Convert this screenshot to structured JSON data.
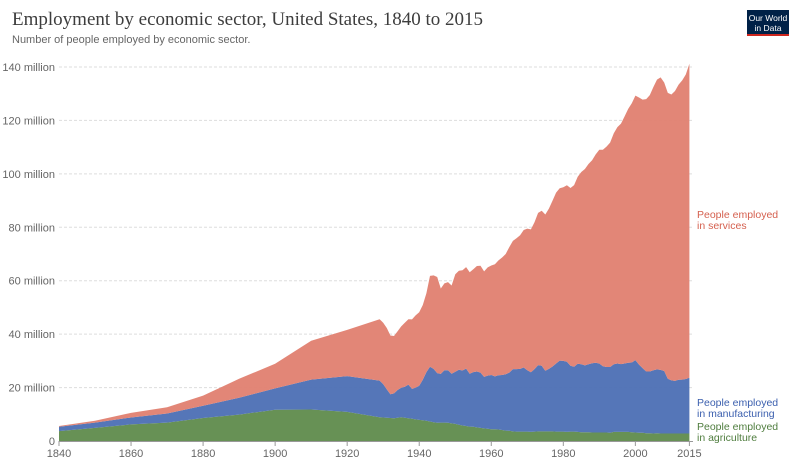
{
  "header": {
    "title": "Employment by economic sector, United States, 1840 to 2015",
    "subtitle": "Number of people employed by economic sector.",
    "logo_line1": "Our World",
    "logo_line2": "in Data"
  },
  "chart_data": {
    "type": "area",
    "stacked": true,
    "title": "Employment by economic sector, United States, 1840 to 2015",
    "subtitle": "Number of people employed by economic sector.",
    "xlim": [
      1840,
      2016
    ],
    "ylim": [
      0,
      140000000
    ],
    "x_ticks": [
      "1840",
      "1860",
      "1880",
      "1900",
      "1920",
      "1940",
      "1960",
      "1980",
      "2000",
      "2015"
    ],
    "y_ticks": [
      "0",
      "20 million",
      "40 million",
      "60 million",
      "80 million",
      "100 million",
      "120 million",
      "140 million"
    ],
    "y_tick_values": [
      0,
      20000000,
      40000000,
      60000000,
      80000000,
      100000000,
      120000000,
      140000000
    ],
    "x_tick_values": [
      1840,
      1860,
      1880,
      1900,
      1920,
      1940,
      1960,
      1980,
      2000,
      2015
    ],
    "grid": true,
    "legend": "inline-right",
    "x": [
      1840,
      1850,
      1860,
      1870,
      1880,
      1890,
      1900,
      1910,
      1920,
      1929,
      1930,
      1931,
      1932,
      1933,
      1934,
      1935,
      1936,
      1937,
      1938,
      1939,
      1940,
      1941,
      1942,
      1943,
      1944,
      1945,
      1946,
      1947,
      1948,
      1949,
      1950,
      1951,
      1952,
      1953,
      1954,
      1955,
      1956,
      1957,
      1958,
      1959,
      1960,
      1961,
      1962,
      1963,
      1964,
      1965,
      1966,
      1967,
      1968,
      1969,
      1970,
      1971,
      1972,
      1973,
      1974,
      1975,
      1976,
      1977,
      1978,
      1979,
      1980,
      1981,
      1982,
      1983,
      1984,
      1985,
      1986,
      1987,
      1988,
      1989,
      1990,
      1991,
      1992,
      1993,
      1994,
      1995,
      1996,
      1997,
      1998,
      1999,
      2000,
      2001,
      2002,
      2003,
      2004,
      2005,
      2006,
      2007,
      2008,
      2009,
      2010,
      2011,
      2012,
      2013,
      2014,
      2015
    ],
    "series": [
      {
        "name": "People employed in agriculture",
        "label_line1": "People employed",
        "label_line2": "in agriculture",
        "color": "#5f8b4c",
        "values": [
          3.7,
          4.9,
          6.2,
          6.9,
          8.6,
          9.9,
          11.7,
          11.8,
          10.9,
          8.9,
          8.8,
          8.7,
          8.6,
          8.5,
          8.7,
          8.9,
          8.7,
          8.5,
          8.3,
          8.1,
          7.9,
          7.8,
          7.6,
          7.3,
          7.0,
          6.8,
          6.9,
          6.9,
          6.8,
          6.6,
          6.4,
          6.1,
          5.8,
          5.6,
          5.4,
          5.3,
          5.1,
          4.9,
          4.7,
          4.6,
          4.4,
          4.4,
          4.3,
          4.1,
          3.9,
          3.8,
          3.6,
          3.5,
          3.5,
          3.5,
          3.5,
          3.4,
          3.5,
          3.6,
          3.6,
          3.6,
          3.6,
          3.6,
          3.5,
          3.5,
          3.5,
          3.4,
          3.5,
          3.5,
          3.4,
          3.3,
          3.3,
          3.3,
          3.2,
          3.2,
          3.2,
          3.2,
          3.2,
          3.1,
          3.4,
          3.4,
          3.4,
          3.4,
          3.4,
          3.3,
          3.2,
          3.1,
          3.1,
          2.9,
          2.9,
          2.8,
          2.9,
          2.8,
          2.8,
          2.8,
          2.8,
          2.8,
          2.8,
          2.8,
          2.8,
          2.8
        ]
      },
      {
        "name": "People employed in manufacturing",
        "label_line1": "People employed",
        "label_line2": "in manufacturing",
        "color": "#4c6fb4",
        "values": [
          1.6,
          2.0,
          2.6,
          3.4,
          4.6,
          6.3,
          8.0,
          11.2,
          13.4,
          13.7,
          12.5,
          10.6,
          8.9,
          9.3,
          10.4,
          11.0,
          11.6,
          12.6,
          11.2,
          11.9,
          12.8,
          15.1,
          18.2,
          20.5,
          20.0,
          18.6,
          18.2,
          19.6,
          19.7,
          18.6,
          19.5,
          20.6,
          20.6,
          21.5,
          19.8,
          20.5,
          20.9,
          20.7,
          19.3,
          19.9,
          20.3,
          19.8,
          20.3,
          20.6,
          21.1,
          21.8,
          23.3,
          23.4,
          23.5,
          24.0,
          23.0,
          22.3,
          23.4,
          24.8,
          24.6,
          22.7,
          23.4,
          24.3,
          25.5,
          26.6,
          26.5,
          26.3,
          24.7,
          24.3,
          25.5,
          25.4,
          25.0,
          25.4,
          25.9,
          26.1,
          25.8,
          24.8,
          24.5,
          24.6,
          25.3,
          25.6,
          25.4,
          25.6,
          25.9,
          26.1,
          27.1,
          25.5,
          24.2,
          23.1,
          23.1,
          23.7,
          23.9,
          23.8,
          23.4,
          20.5,
          19.9,
          19.7,
          20.1,
          20.2,
          20.4,
          20.9
        ]
      },
      {
        "name": "People employed in services",
        "label_line1": "People employed",
        "label_line2": "in services",
        "color": "#e07f70",
        "values": [
          0.3,
          0.7,
          1.7,
          2.3,
          3.8,
          7.1,
          9.2,
          14.5,
          17.3,
          23.0,
          23.0,
          23.0,
          22.0,
          21.5,
          22.0,
          23.0,
          24.0,
          24.5,
          26.0,
          27.0,
          27.5,
          28.0,
          29.5,
          34.0,
          35.0,
          36.0,
          32.0,
          32.5,
          33.0,
          33.0,
          36.5,
          37.0,
          37.5,
          38.0,
          38.0,
          38.5,
          39.5,
          40.0,
          39.5,
          40.5,
          41.0,
          42.0,
          43.0,
          44.0,
          45.0,
          47.0,
          48.0,
          49.0,
          50.0,
          51.5,
          53.0,
          53.5,
          55.0,
          57.0,
          58.0,
          58.5,
          60.0,
          62.0,
          64.0,
          64.5,
          65.0,
          66.0,
          66.5,
          68.0,
          70.0,
          72.0,
          73.5,
          75.0,
          76.0,
          78.0,
          80.0,
          81.0,
          82.5,
          84.0,
          86.5,
          88.5,
          90.0,
          92.5,
          95.0,
          97.0,
          99.0,
          100.0,
          100.5,
          102.0,
          103.5,
          106.0,
          108.5,
          109.5,
          108.0,
          107.0,
          107.0,
          108.5,
          110.5,
          112.0,
          114.0,
          117.5
        ]
      }
    ]
  }
}
